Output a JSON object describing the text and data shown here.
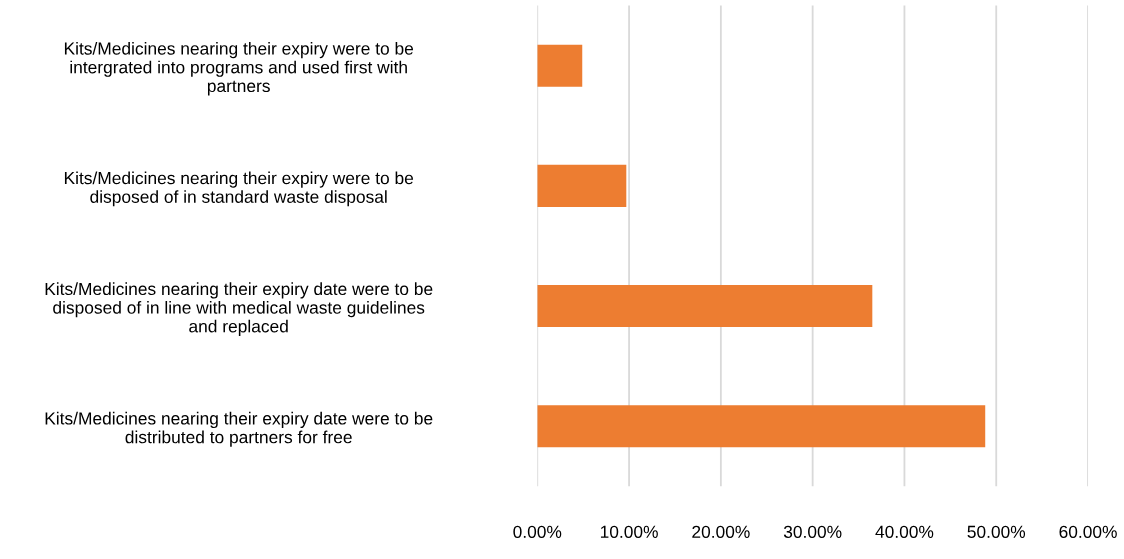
{
  "chart_data": {
    "type": "bar",
    "orientation": "horizontal",
    "categories": [
      "Kits/Medicines nearing their expiry were to be\nintergrated into programs and used first with\npartners",
      "Kits/Medicines nearing their expiry were to be\ndisposed of in standard waste disposal",
      "Kits/Medicines nearing their expiry date were to be\ndisposed of in line with medical waste guidelines\nand replaced",
      "Kits/Medicines nearing their expiry date were to be\ndistributed to partners for free"
    ],
    "values": [
      4.9,
      9.7,
      36.5,
      48.8
    ],
    "color": "#ed7d31",
    "xlim": [
      0,
      60
    ],
    "xticks": [
      {
        "value": 0,
        "label": "0.00%"
      },
      {
        "value": 10,
        "label": "10.00%"
      },
      {
        "value": 20,
        "label": "20.00%"
      },
      {
        "value": 30,
        "label": "30.00%"
      },
      {
        "value": 40,
        "label": "40.00%"
      },
      {
        "value": 50,
        "label": "50.00%"
      },
      {
        "value": 60,
        "label": "60.00%"
      }
    ],
    "grid": "x"
  }
}
